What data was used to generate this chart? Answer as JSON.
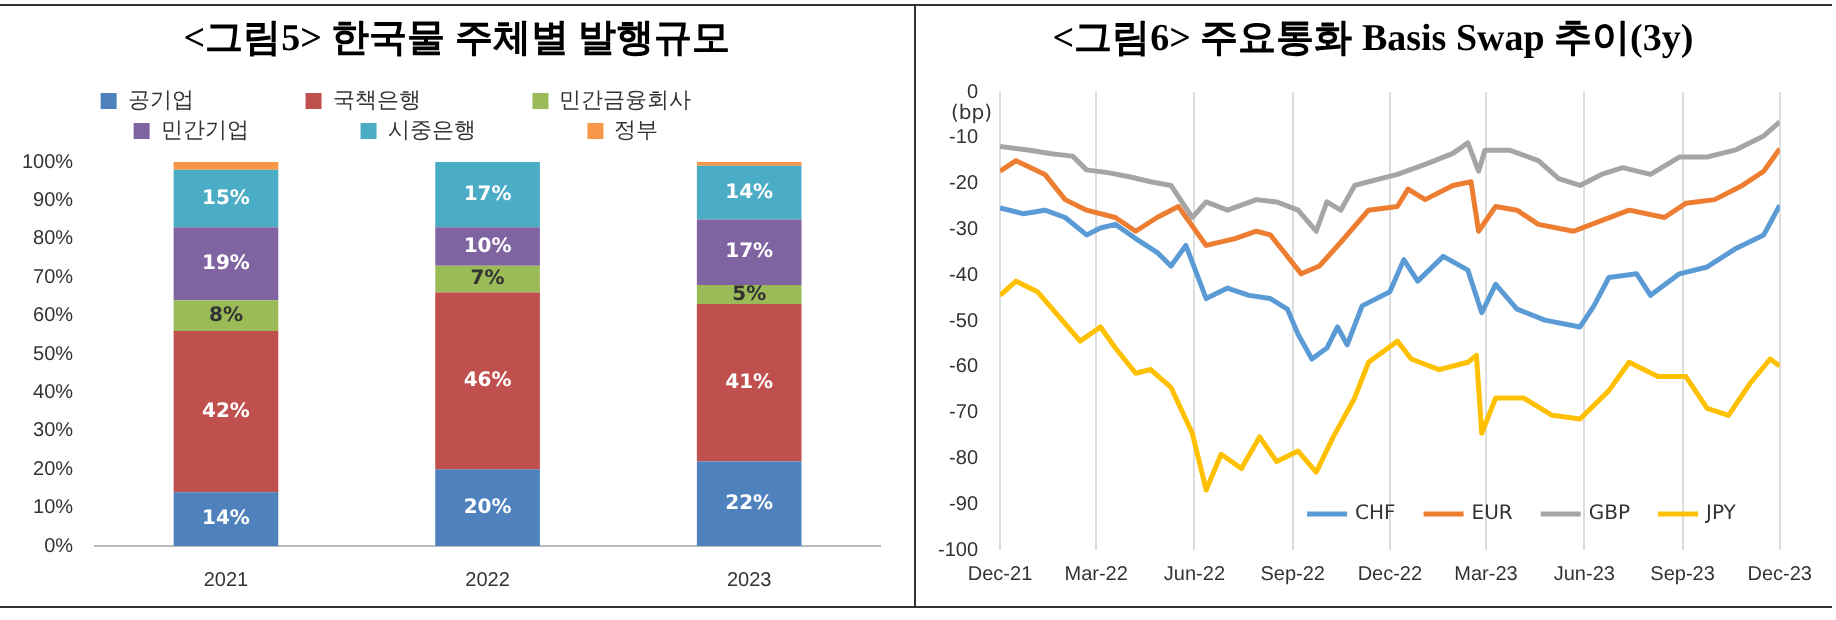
{
  "chart_data": [
    {
      "type": "bar",
      "title": "<그림5> 한국물 주체별 발행규모",
      "categories": [
        "2021",
        "2022",
        "2023"
      ],
      "stacked": true,
      "legend": "top",
      "ylim": [
        0,
        100
      ],
      "yticks": [
        {
          "value": 0,
          "label": "0%"
        },
        {
          "value": 10,
          "label": "10%"
        },
        {
          "value": 20,
          "label": "20%"
        },
        {
          "value": 30,
          "label": "30%"
        },
        {
          "value": 40,
          "label": "40%"
        },
        {
          "value": 50,
          "label": "50%"
        },
        {
          "value": 60,
          "label": "60%"
        },
        {
          "value": 70,
          "label": "70%"
        },
        {
          "value": 80,
          "label": "80%"
        },
        {
          "value": 90,
          "label": "90%"
        },
        {
          "value": 100,
          "label": "100%"
        }
      ],
      "series": [
        {
          "name": "공기업",
          "color": "#4f81bd",
          "values": [
            14,
            20,
            22
          ],
          "value_labels": [
            "14%",
            "20%",
            "22%"
          ]
        },
        {
          "name": "국책은행",
          "color": "#c0504d",
          "values": [
            42,
            46,
            41
          ],
          "value_labels": [
            "42%",
            "46%",
            "41%"
          ]
        },
        {
          "name": "민간금융회사",
          "color": "#9bbb59",
          "values": [
            8,
            7,
            5
          ],
          "value_labels": [
            "8%",
            "7%",
            "5%"
          ]
        },
        {
          "name": "민간기업",
          "color": "#8064a2",
          "values": [
            19,
            10,
            17
          ],
          "value_labels": [
            "19%",
            "10%",
            "17%"
          ]
        },
        {
          "name": "시중은행",
          "color": "#4bacc6",
          "values": [
            15,
            17,
            14
          ],
          "value_labels": [
            "15%",
            "17%",
            "14%"
          ]
        },
        {
          "name": "정부",
          "color": "#f79646",
          "values": [
            2,
            0,
            1
          ]
        }
      ]
    },
    {
      "type": "line",
      "title": "<그림6> 주요통화 Basis Swap 추이(3y)",
      "ylabel": "(bp)",
      "legend": "bottom right",
      "grid": "x",
      "ylim": [
        -100,
        0
      ],
      "yticks": [
        -100,
        -90,
        -80,
        -70,
        -60,
        -50,
        -40,
        -30,
        -20,
        -10,
        0
      ],
      "xlim": [
        "2021-12-01",
        "2023-12-01"
      ],
      "xticks": [
        {
          "value": "2021-12-01",
          "label": "Dec-21"
        },
        {
          "value": "2022-03-01",
          "label": "Mar-22"
        },
        {
          "value": "2022-06-01",
          "label": "Jun-22"
        },
        {
          "value": "2022-09-01",
          "label": "Sep-22"
        },
        {
          "value": "2022-12-01",
          "label": "Dec-22"
        },
        {
          "value": "2023-03-01",
          "label": "Mar-23"
        },
        {
          "value": "2023-06-01",
          "label": "Jun-23"
        },
        {
          "value": "2023-09-01",
          "label": "Sep-23"
        },
        {
          "value": "2023-12-01",
          "label": "Dec-23"
        }
      ],
      "series": [
        {
          "name": "CHF",
          "color": "#5b9bd5",
          "x": [
            "2021-12-01",
            "2021-12-23",
            "2022-01-12",
            "2022-01-31",
            "2022-02-20",
            "2022-03-05",
            "2022-03-19",
            "2022-04-07",
            "2022-04-27",
            "2022-05-10",
            "2022-05-24",
            "2022-06-12",
            "2022-07-02",
            "2022-07-22",
            "2022-08-11",
            "2022-08-27",
            "2022-09-06",
            "2022-09-19",
            "2022-10-03",
            "2022-10-13",
            "2022-10-22",
            "2022-11-05",
            "2022-12-01",
            "2022-12-14",
            "2022-12-27",
            "2023-01-20",
            "2023-02-12",
            "2023-02-25",
            "2023-03-10",
            "2023-03-30",
            "2023-04-25",
            "2023-05-28",
            "2023-06-10",
            "2023-06-24",
            "2023-07-20",
            "2023-08-02",
            "2023-08-29",
            "2023-09-24",
            "2023-10-20",
            "2023-11-16",
            "2023-12-01"
          ],
          "values": [
            -25.3,
            -26.6,
            -25.8,
            -27.4,
            -31.2,
            -29.7,
            -28.9,
            -32,
            -35,
            -38,
            -33.5,
            -45.1,
            -42.8,
            -44.4,
            -45.1,
            -47.4,
            -52.9,
            -58.3,
            -55.9,
            -51.3,
            -55.2,
            -46.7,
            -43.6,
            -36.6,
            -41.3,
            -35.9,
            -38.9,
            -48.2,
            -42,
            -47.4,
            -49.8,
            -51.3,
            -46.7,
            -40.5,
            -39.7,
            -44.4,
            -39.7,
            -38.2,
            -34.3,
            -31.2,
            -24.7
          ]
        },
        {
          "name": "EUR",
          "color": "#ed7d31",
          "x": [
            "2021-12-01",
            "2021-12-16",
            "2022-01-12",
            "2022-01-31",
            "2022-02-20",
            "2022-03-19",
            "2022-04-07",
            "2022-04-27",
            "2022-05-17",
            "2022-06-12",
            "2022-07-09",
            "2022-07-29",
            "2022-08-11",
            "2022-08-24",
            "2022-09-09",
            "2022-09-26",
            "2022-10-16",
            "2022-11-11",
            "2022-12-08",
            "2022-12-18",
            "2023-01-03",
            "2023-01-29",
            "2023-02-15",
            "2023-02-22",
            "2023-03-10",
            "2023-03-30",
            "2023-04-19",
            "2023-05-22",
            "2023-06-17",
            "2023-07-13",
            "2023-08-15",
            "2023-09-04",
            "2023-10-01",
            "2023-10-27",
            "2023-11-16",
            "2023-12-01"
          ],
          "values": [
            -17.3,
            -15,
            -18,
            -23.5,
            -25.8,
            -27.4,
            -30.4,
            -27.4,
            -25,
            -33.5,
            -32,
            -30.4,
            -31.2,
            -35,
            -39.7,
            -38,
            -32.8,
            -25.8,
            -25,
            -21.2,
            -23.5,
            -20.4,
            -19.6,
            -30.4,
            -25,
            -25.8,
            -28.9,
            -30.4,
            -28.1,
            -25.8,
            -27.4,
            -24.3,
            -23.5,
            -20.4,
            -17.3,
            -12.4
          ]
        },
        {
          "name": "GBP",
          "color": "#a5a5a5",
          "x": [
            "2021-12-01",
            "2021-12-29",
            "2022-01-18",
            "2022-02-07",
            "2022-02-20",
            "2022-03-12",
            "2022-04-01",
            "2022-04-21",
            "2022-05-10",
            "2022-05-30",
            "2022-06-12",
            "2022-07-02",
            "2022-07-29",
            "2022-08-17",
            "2022-09-06",
            "2022-09-23",
            "2022-10-03",
            "2022-10-16",
            "2022-10-29",
            "2022-11-11",
            "2022-12-08",
            "2023-01-03",
            "2023-01-29",
            "2023-02-12",
            "2023-02-22",
            "2023-02-28",
            "2023-03-23",
            "2023-04-19",
            "2023-05-08",
            "2023-05-28",
            "2023-06-17",
            "2023-07-07",
            "2023-08-02",
            "2023-08-29",
            "2023-09-24",
            "2023-10-20",
            "2023-11-16",
            "2023-12-01"
          ],
          "values": [
            -11.9,
            -12.7,
            -13.5,
            -14,
            -17,
            -17.6,
            -18.5,
            -19.6,
            -20.4,
            -27.4,
            -24,
            -25.8,
            -23.5,
            -24,
            -25.8,
            -30.4,
            -24,
            -25.8,
            -20.4,
            -19.6,
            -18,
            -15.8,
            -13.4,
            -11.1,
            -17.3,
            -12.7,
            -12.7,
            -15,
            -18.9,
            -20.4,
            -18,
            -16.5,
            -18,
            -14.2,
            -14.2,
            -12.7,
            -9.6,
            -6.5
          ]
        },
        {
          "name": "JPY",
          "color": "#ffc000",
          "x": [
            "2021-12-01",
            "2021-12-16",
            "2022-01-05",
            "2022-01-25",
            "2022-02-14",
            "2022-03-05",
            "2022-03-19",
            "2022-04-07",
            "2022-04-21",
            "2022-05-10",
            "2022-05-30",
            "2022-06-12",
            "2022-06-26",
            "2022-07-15",
            "2022-08-01",
            "2022-08-17",
            "2022-09-06",
            "2022-09-23",
            "2022-10-09",
            "2022-10-29",
            "2022-11-11",
            "2022-12-08",
            "2022-12-21",
            "2023-01-16",
            "2023-02-12",
            "2023-02-20",
            "2023-02-25",
            "2023-03-10",
            "2023-04-05",
            "2023-05-02",
            "2023-05-28",
            "2023-06-24",
            "2023-07-13",
            "2023-08-09",
            "2023-09-04",
            "2023-09-24",
            "2023-10-14",
            "2023-11-03",
            "2023-11-22",
            "2023-12-01"
          ],
          "values": [
            -44.4,
            -41.3,
            -43.6,
            -49,
            -54.4,
            -51.3,
            -55.9,
            -61.4,
            -60.6,
            -64.5,
            -74.5,
            -86.9,
            -79.1,
            -82.2,
            -75.3,
            -80.7,
            -78.4,
            -83,
            -75.3,
            -66.8,
            -59,
            -54.4,
            -58.3,
            -60.6,
            -59,
            -57.5,
            -74.5,
            -66.8,
            -66.8,
            -70.6,
            -71.4,
            -65.2,
            -59,
            -62.1,
            -62.1,
            -69.1,
            -70.6,
            -63.7,
            -58.3,
            -59.8
          ]
        }
      ]
    }
  ]
}
